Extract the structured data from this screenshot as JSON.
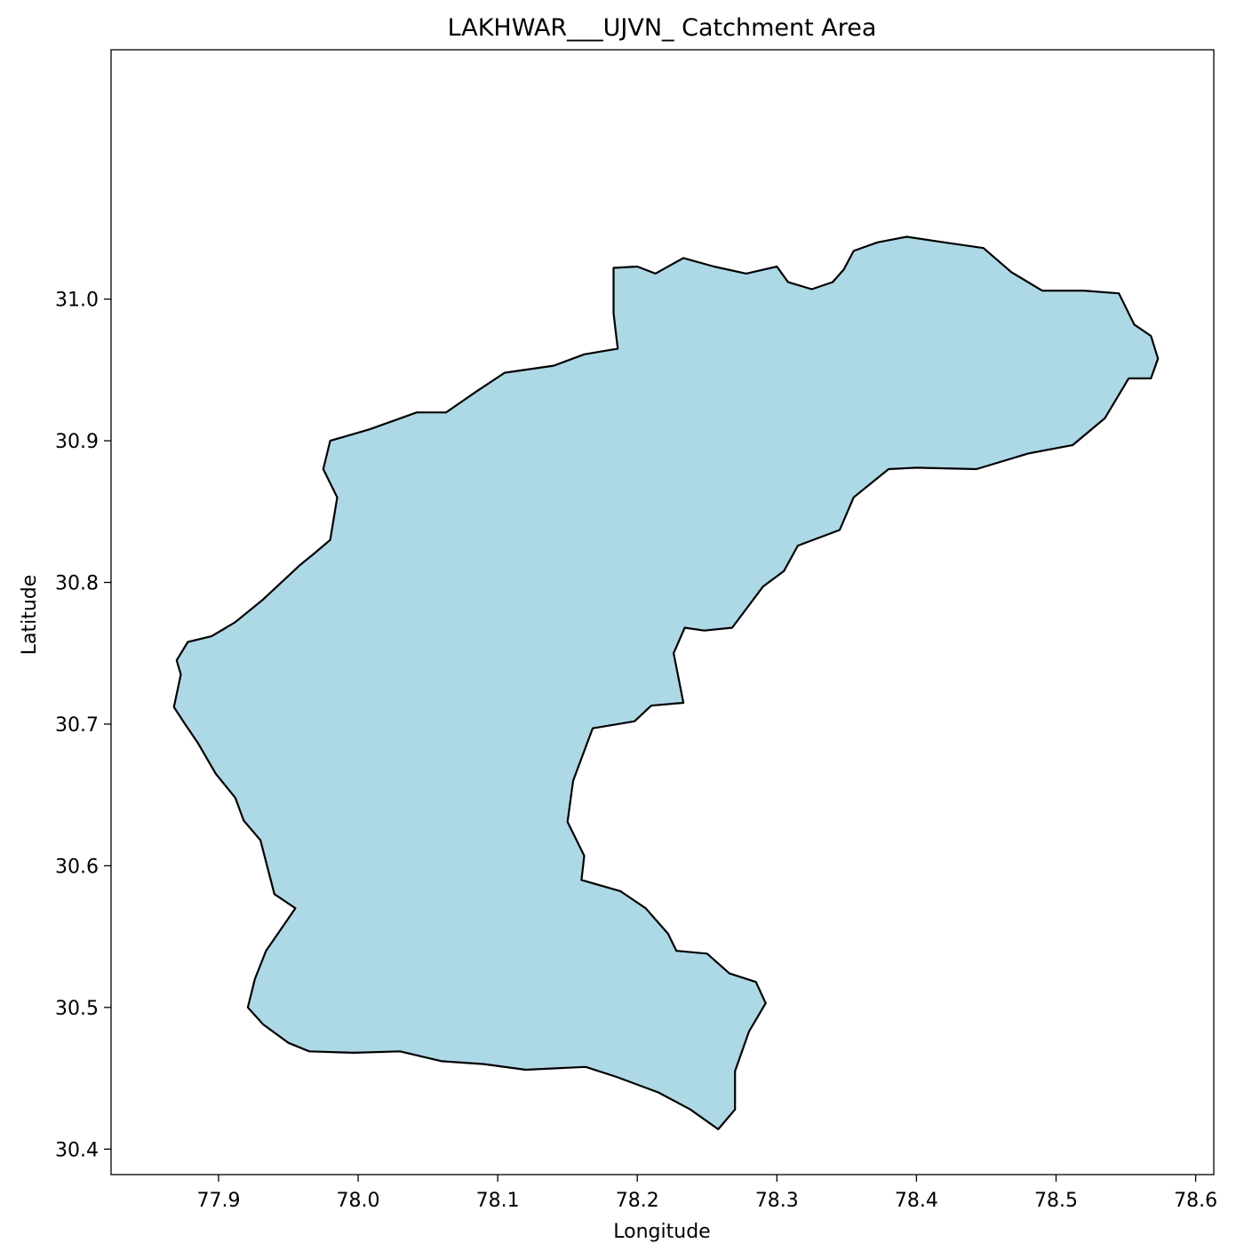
{
  "chart_data": {
    "type": "map",
    "title": "LAKHWAR___UJVN_ Catchment Area",
    "xlabel": "Longitude",
    "ylabel": "Latitude",
    "xlim": [
      77.823,
      78.613
    ],
    "ylim": [
      30.382,
      31.176
    ],
    "x_ticks": [
      77.9,
      78.0,
      78.1,
      78.2,
      78.3,
      78.4,
      78.5,
      78.6
    ],
    "x_tick_labels": [
      "77.9",
      "78.0",
      "78.1",
      "78.2",
      "78.3",
      "78.4",
      "78.5",
      "78.6"
    ],
    "y_ticks": [
      30.4,
      30.5,
      30.6,
      30.7,
      30.8,
      30.9,
      31.0
    ],
    "y_tick_labels": [
      "30.4",
      "30.5",
      "30.6",
      "30.7",
      "30.8",
      "30.9",
      "31.0"
    ],
    "fill_color": "#add8e6",
    "edge_color": "#000000",
    "catchment_polygon": [
      [
        78.183,
        31.022
      ],
      [
        78.2,
        31.023
      ],
      [
        78.213,
        31.018
      ],
      [
        78.233,
        31.029
      ],
      [
        78.255,
        31.023
      ],
      [
        78.278,
        31.018
      ],
      [
        78.3,
        31.023
      ],
      [
        78.308,
        31.012
      ],
      [
        78.325,
        31.007
      ],
      [
        78.34,
        31.012
      ],
      [
        78.348,
        31.021
      ],
      [
        78.355,
        31.034
      ],
      [
        78.372,
        31.04
      ],
      [
        78.393,
        31.044
      ],
      [
        78.42,
        31.04
      ],
      [
        78.448,
        31.036
      ],
      [
        78.468,
        31.019
      ],
      [
        78.49,
        31.006
      ],
      [
        78.52,
        31.006
      ],
      [
        78.545,
        31.004
      ],
      [
        78.556,
        30.982
      ],
      [
        78.568,
        30.974
      ],
      [
        78.573,
        30.958
      ],
      [
        78.568,
        30.944
      ],
      [
        78.552,
        30.944
      ],
      [
        78.535,
        30.916
      ],
      [
        78.512,
        30.897
      ],
      [
        78.48,
        30.891
      ],
      [
        78.443,
        30.88
      ],
      [
        78.4,
        30.881
      ],
      [
        78.38,
        30.88
      ],
      [
        78.355,
        30.86
      ],
      [
        78.345,
        30.837
      ],
      [
        78.315,
        30.826
      ],
      [
        78.305,
        30.808
      ],
      [
        78.29,
        30.797
      ],
      [
        78.268,
        30.768
      ],
      [
        78.248,
        30.766
      ],
      [
        78.234,
        30.768
      ],
      [
        78.226,
        30.75
      ],
      [
        78.233,
        30.715
      ],
      [
        78.21,
        30.713
      ],
      [
        78.198,
        30.702
      ],
      [
        78.168,
        30.697
      ],
      [
        78.154,
        30.66
      ],
      [
        78.15,
        30.631
      ],
      [
        78.162,
        30.607
      ],
      [
        78.16,
        30.59
      ],
      [
        78.188,
        30.582
      ],
      [
        78.206,
        30.57
      ],
      [
        78.222,
        30.552
      ],
      [
        78.228,
        30.54
      ],
      [
        78.25,
        30.538
      ],
      [
        78.266,
        30.524
      ],
      [
        78.285,
        30.518
      ],
      [
        78.292,
        30.503
      ],
      [
        78.28,
        30.483
      ],
      [
        78.27,
        30.455
      ],
      [
        78.27,
        30.428
      ],
      [
        78.258,
        30.414
      ],
      [
        78.238,
        30.428
      ],
      [
        78.215,
        30.44
      ],
      [
        78.185,
        30.451
      ],
      [
        78.163,
        30.458
      ],
      [
        78.12,
        30.456
      ],
      [
        78.09,
        30.46
      ],
      [
        78.06,
        30.462
      ],
      [
        78.03,
        30.469
      ],
      [
        77.997,
        30.468
      ],
      [
        77.965,
        30.469
      ],
      [
        77.95,
        30.475
      ],
      [
        77.932,
        30.488
      ],
      [
        77.921,
        30.5
      ],
      [
        77.926,
        30.52
      ],
      [
        77.934,
        30.54
      ],
      [
        77.955,
        30.57
      ],
      [
        77.94,
        30.58
      ],
      [
        77.93,
        30.618
      ],
      [
        77.918,
        30.632
      ],
      [
        77.912,
        30.648
      ],
      [
        77.898,
        30.665
      ],
      [
        77.885,
        30.687
      ],
      [
        77.876,
        30.7
      ],
      [
        77.868,
        30.712
      ],
      [
        77.873,
        30.735
      ],
      [
        77.87,
        30.745
      ],
      [
        77.878,
        30.758
      ],
      [
        77.895,
        30.762
      ],
      [
        77.912,
        30.772
      ],
      [
        77.932,
        30.788
      ],
      [
        77.958,
        30.812
      ],
      [
        77.968,
        30.82
      ],
      [
        77.98,
        30.83
      ],
      [
        77.985,
        30.86
      ],
      [
        77.975,
        30.88
      ],
      [
        77.98,
        30.9
      ],
      [
        78.008,
        30.908
      ],
      [
        78.042,
        30.92
      ],
      [
        78.063,
        30.92
      ],
      [
        78.085,
        30.935
      ],
      [
        78.105,
        30.948
      ],
      [
        78.14,
        30.953
      ],
      [
        78.162,
        30.961
      ],
      [
        78.186,
        30.965
      ],
      [
        78.183,
        30.99
      ],
      [
        78.183,
        31.022
      ]
    ]
  }
}
